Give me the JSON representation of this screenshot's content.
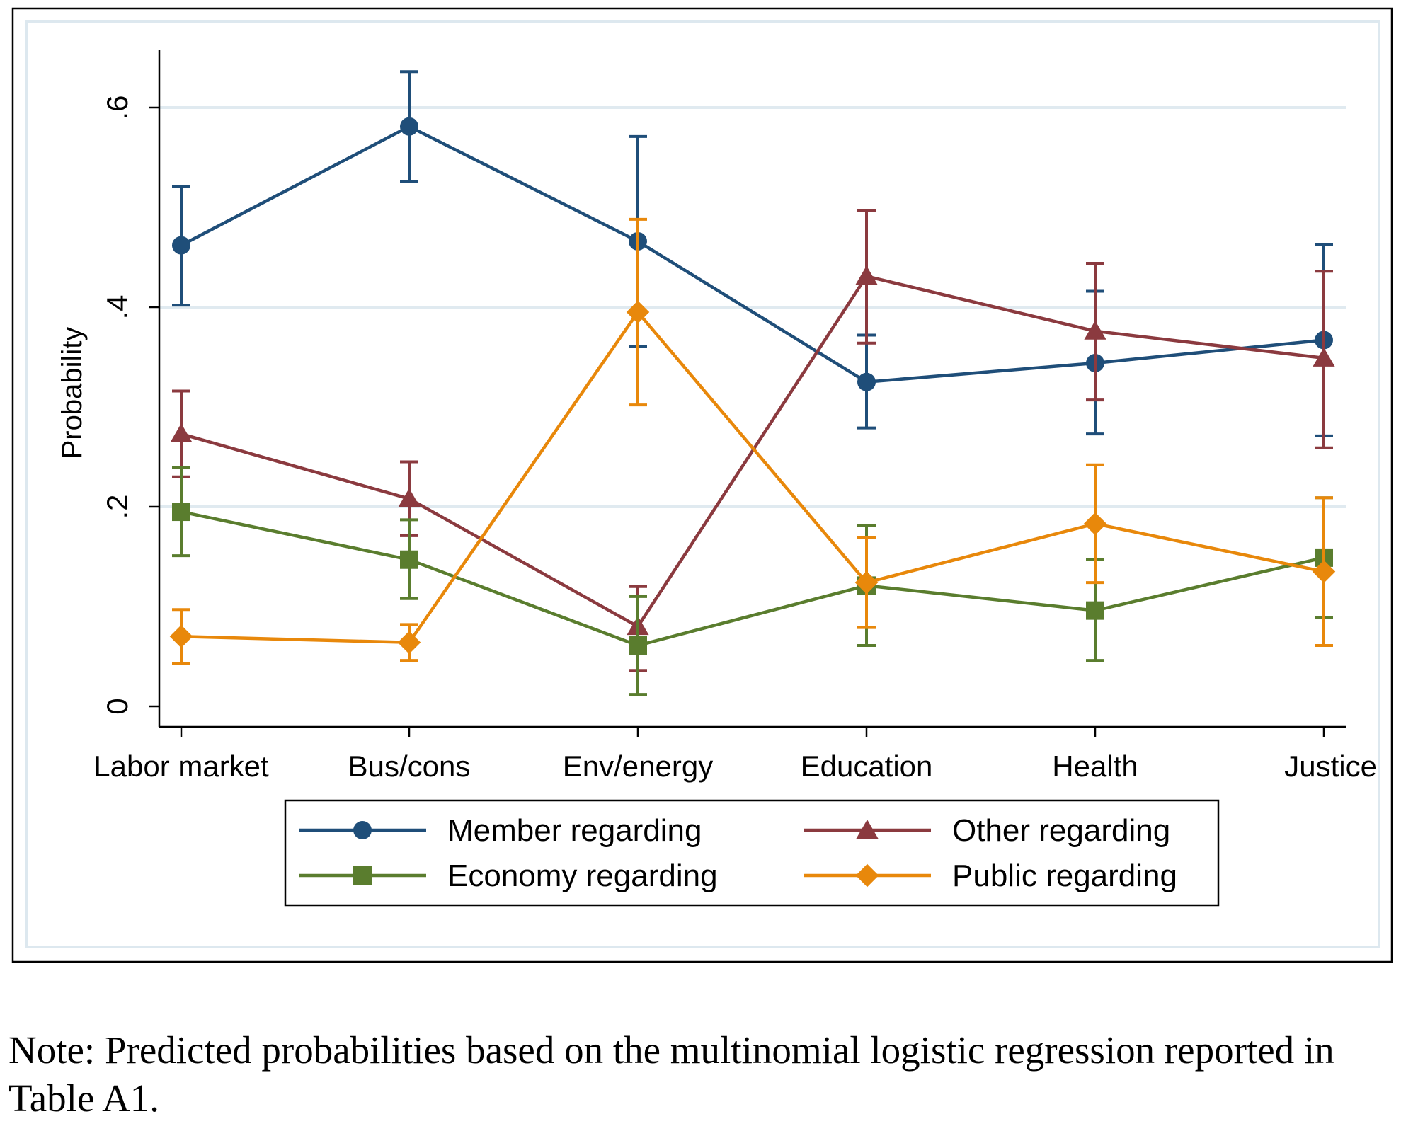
{
  "chart_data": {
    "type": "line",
    "title": "",
    "xlabel": "",
    "ylabel": "Probability",
    "ylim": [
      0,
      0.65
    ],
    "yticks": [
      0,
      0.2,
      0.4,
      0.6
    ],
    "ytick_labels": [
      "0",
      ".2",
      ".4",
      ".6"
    ],
    "grid": true,
    "error_bars": true,
    "legend_placement": "bottom",
    "categories": [
      "Labor market",
      "Bus/cons",
      "Env/energy",
      "Education",
      "Health",
      "Justice"
    ],
    "series": [
      {
        "name": "Member regarding",
        "color": "#1f4e79",
        "marker": "circle",
        "values": [
          0.462,
          0.581,
          0.466,
          0.325,
          0.344,
          0.367
        ],
        "lower": [
          0.402,
          0.526,
          0.361,
          0.279,
          0.273,
          0.271
        ],
        "upper": [
          0.521,
          0.636,
          0.571,
          0.372,
          0.416,
          0.463
        ]
      },
      {
        "name": "Other regarding",
        "color": "#8b3a3f",
        "marker": "triangle",
        "values": [
          0.273,
          0.208,
          0.08,
          0.431,
          0.376,
          0.349
        ],
        "lower": [
          0.23,
          0.171,
          0.036,
          0.364,
          0.307,
          0.259
        ],
        "upper": [
          0.316,
          0.245,
          0.12,
          0.497,
          0.444,
          0.436
        ]
      },
      {
        "name": "Economy regarding",
        "color": "#5a7d2e",
        "marker": "square",
        "values": [
          0.195,
          0.147,
          0.061,
          0.121,
          0.096,
          0.149
        ],
        "lower": [
          0.151,
          0.108,
          0.012,
          0.061,
          0.046,
          0.089
        ],
        "upper": [
          0.239,
          0.187,
          0.11,
          0.181,
          0.147,
          0.209
        ]
      },
      {
        "name": "Public regarding",
        "color": "#e8880b",
        "marker": "diamond",
        "values": [
          0.07,
          0.064,
          0.395,
          0.124,
          0.183,
          0.135
        ],
        "lower": [
          0.043,
          0.046,
          0.302,
          0.079,
          0.124,
          0.061
        ],
        "upper": [
          0.097,
          0.082,
          0.488,
          0.169,
          0.242,
          0.209
        ]
      }
    ]
  },
  "note": "Note: Predicted probabilities based on the multinomial logistic regression reported in Table A1."
}
